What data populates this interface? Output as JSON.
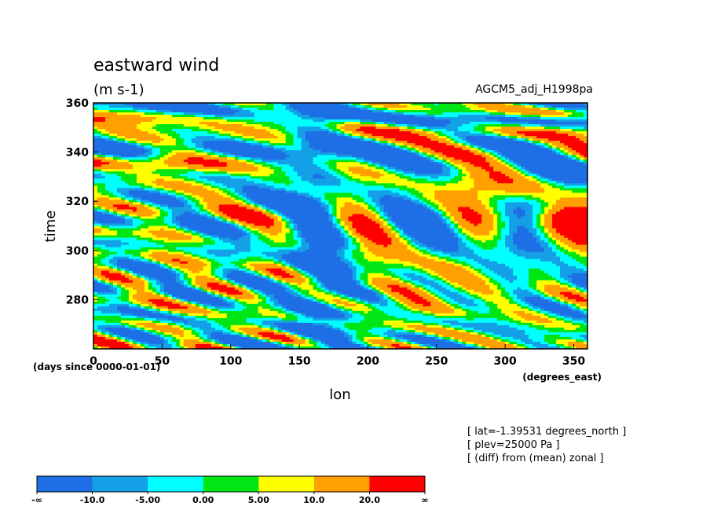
{
  "chart_data": {
    "type": "heatmap",
    "title": "eastward wind",
    "subtitle": "(m s-1)",
    "dataset_label": "AGCM5_adj_H1998pa",
    "xlabel": "lon",
    "ylabel": "time",
    "x_unit_label": "(degrees_east)",
    "y_unit_label": "(days since 0000-01-01)",
    "xlim": [
      0,
      360
    ],
    "ylim": [
      260,
      360
    ],
    "x_ticks": [
      "0",
      "50",
      "100",
      "150",
      "200",
      "250",
      "300",
      "350"
    ],
    "x_tick_values": [
      0,
      50,
      100,
      150,
      200,
      250,
      300,
      350
    ],
    "y_ticks": [
      "280",
      "300",
      "320",
      "340",
      "360"
    ],
    "y_tick_values": [
      280,
      300,
      320,
      340,
      360
    ],
    "notes": [
      "[ lat=-1.39531 degrees_north ]",
      "[ plev=25000 Pa ]",
      "[ (diff) from (mean) zonal ]"
    ],
    "colorbar": {
      "tick_labels": [
        "-∞",
        "-10.0",
        "-5.00",
        "0.00",
        "5.00",
        "10.0",
        "20.0",
        "∞"
      ],
      "colors": [
        "#1e6ee6",
        "#14a0e6",
        "#00ffff",
        "#00e614",
        "#ffff00",
        "#ffa000",
        "#ff0000"
      ]
    },
    "features": [
      {
        "lon": 165,
        "time_range": [
          262,
          360
        ],
        "value_range": "below -10",
        "description": "easterly anomaly band"
      },
      {
        "lon": 240,
        "time_range": [
          275,
          290
        ],
        "value_range": "10 to 20"
      },
      {
        "lon": 230,
        "time_range": [
          316,
          323
        ],
        "value_range": "10 to 20"
      },
      {
        "lon": 60,
        "time_range": [
          330,
          338
        ],
        "value_range": "10 to 20"
      },
      {
        "lon": 350,
        "time_range": [
          310,
          316
        ],
        "value_range": "above 20"
      }
    ]
  }
}
